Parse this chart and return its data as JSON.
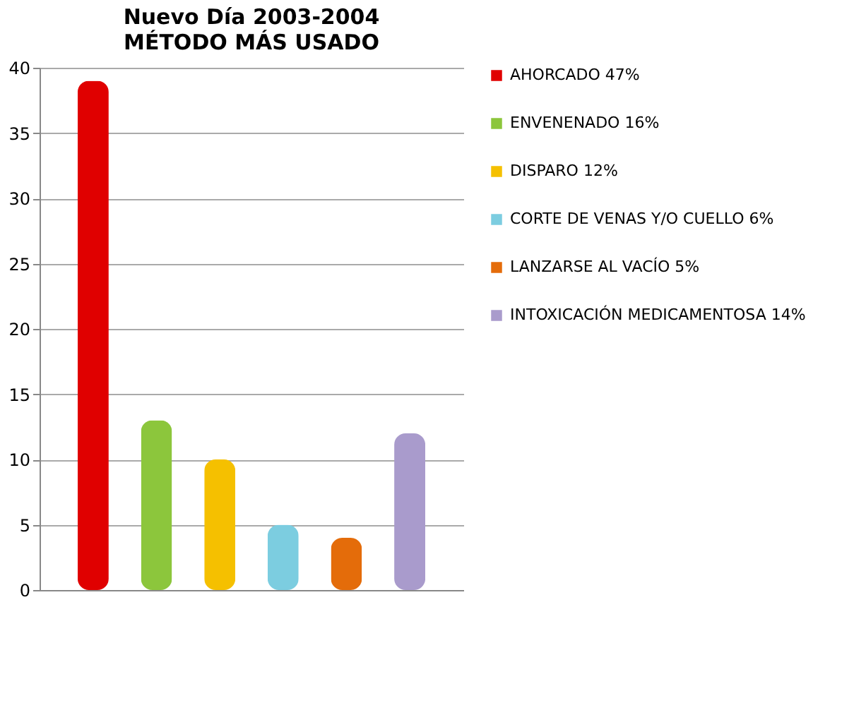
{
  "chart_data": {
    "type": "bar",
    "title": "Nuevo Día 2003-2004",
    "subtitle": "MÉTODO MÁS USADO",
    "categories": [
      null
    ],
    "series": [
      {
        "name": "AHORCADO  47%",
        "color": "#e00000",
        "values": [
          39
        ]
      },
      {
        "name": "ENVENENADO  16%",
        "color": "#8cc63c",
        "values": [
          13
        ]
      },
      {
        "name": "DISPARO  12%",
        "color": "#f5c000",
        "values": [
          10
        ]
      },
      {
        "name": "CORTE DE VENAS Y/O CUELLO  6%",
        "color": "#7ccde0",
        "values": [
          5
        ]
      },
      {
        "name": "LANZARSE AL VACÍO  5%",
        "color": "#e46c0a",
        "values": [
          4
        ]
      },
      {
        "name": "INTOXICACIÓN MEDICAMENTOSA 14%",
        "color": "#a99bcc",
        "values": [
          12
        ]
      }
    ],
    "ylim": [
      0,
      40
    ],
    "yticks": [
      0,
      5,
      10,
      15,
      20,
      25,
      30,
      35,
      40
    ],
    "grid": "y",
    "legend": "right",
    "tick_labels": "y"
  }
}
